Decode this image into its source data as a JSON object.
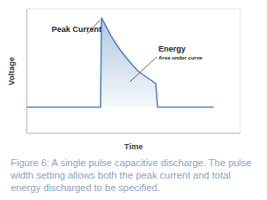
{
  "chart_data": {
    "type": "area",
    "x_label": "Time",
    "y_label": "Voltage",
    "x": [
      0,
      8.3,
      8.4,
      9.5,
      10.5,
      11.5,
      12.5,
      13.5,
      14.5,
      14.7,
      21
    ],
    "values": [
      2.1,
      2.1,
      9.3,
      7.8,
      6.7,
      5.8,
      5.0,
      4.5,
      4.0,
      2.1,
      2.1
    ],
    "xlim": [
      0,
      24
    ],
    "xticks": [
      0,
      2,
      4,
      6,
      8,
      10,
      12,
      14,
      16,
      18,
      20,
      22,
      24
    ],
    "ylim": [
      0,
      10
    ],
    "yticks": [
      0,
      2,
      4,
      6,
      8,
      10
    ],
    "grid": true,
    "tick_labels": false,
    "color": "#4f81bd",
    "annotations": [
      "Peak Current",
      "Energy",
      "Area under curve"
    ],
    "caption": "Figure 6: A single pulse capacitive discharge. The pulse width setting allows both the peak current and total energy discharged to be specified."
  }
}
